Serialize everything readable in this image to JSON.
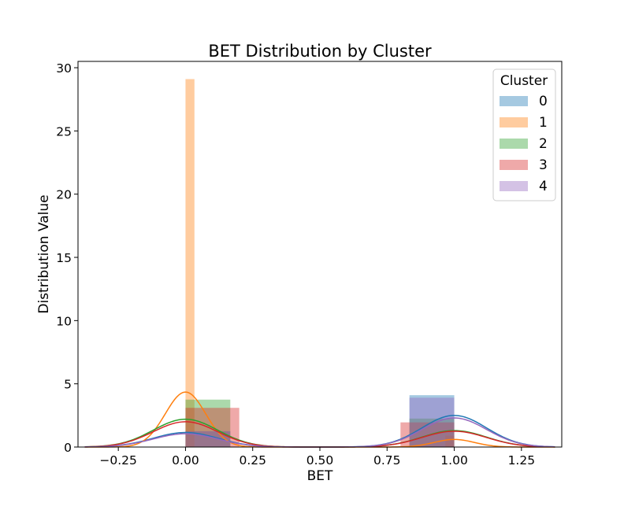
{
  "chart_data": {
    "type": "histogram-kde",
    "title": "BET Distribution by Cluster",
    "xlabel": "BET",
    "ylabel": "Distribution Value",
    "xlim": [
      -0.4,
      1.4
    ],
    "ylim": [
      0,
      30.5
    ],
    "xticks": [
      -0.25,
      0.0,
      0.25,
      0.5,
      0.75,
      1.0,
      1.25
    ],
    "xtick_labels": [
      "−0.25",
      "0.00",
      "0.25",
      "0.50",
      "0.75",
      "1.00",
      "1.25"
    ],
    "yticks": [
      0,
      5,
      10,
      15,
      20,
      25,
      30
    ],
    "ytick_labels": [
      "0",
      "5",
      "10",
      "15",
      "20",
      "25",
      "30"
    ],
    "grid": false,
    "legend": {
      "title": "Cluster",
      "position": "top-right"
    },
    "series": [
      {
        "name": "0",
        "color": "#1f77b4",
        "bins": [
          {
            "x0": 0.0,
            "x1": 0.1667,
            "density": 1.25
          },
          {
            "x0": 0.8333,
            "x1": 1.0,
            "density": 4.1
          }
        ],
        "kde": {
          "peaks": [
            {
              "mu": 0.0,
              "sigma": 0.12,
              "height": 1.15
            },
            {
              "mu": 1.0,
              "sigma": 0.12,
              "height": 2.5
            }
          ]
        }
      },
      {
        "name": "1",
        "color": "#ff7f0e",
        "bins": [
          {
            "x0": 0.0,
            "x1": 0.0333,
            "density": 29.1
          },
          {
            "x0": 0.9667,
            "x1": 1.0,
            "density": 0.9
          }
        ],
        "kde": {
          "peaks": [
            {
              "mu": 0.0,
              "sigma": 0.075,
              "height": 4.35
            },
            {
              "mu": 1.0,
              "sigma": 0.075,
              "height": 0.6
            }
          ]
        }
      },
      {
        "name": "2",
        "color": "#2ca02c",
        "bins": [
          {
            "x0": 0.0,
            "x1": 0.1667,
            "density": 3.75
          },
          {
            "x0": 0.8333,
            "x1": 1.0,
            "density": 2.25
          }
        ],
        "kde": {
          "peaks": [
            {
              "mu": 0.0,
              "sigma": 0.12,
              "height": 2.2
            },
            {
              "mu": 1.0,
              "sigma": 0.12,
              "height": 1.3
            }
          ]
        }
      },
      {
        "name": "3",
        "color": "#d62728",
        "bins": [
          {
            "x0": 0.0,
            "x1": 0.2,
            "density": 3.1
          },
          {
            "x0": 0.8,
            "x1": 1.0,
            "density": 1.95
          }
        ],
        "kde": {
          "peaks": [
            {
              "mu": 0.0,
              "sigma": 0.12,
              "height": 2.0
            },
            {
              "mu": 1.0,
              "sigma": 0.12,
              "height": 1.25
            }
          ]
        }
      },
      {
        "name": "4",
        "color": "#9467bd",
        "bins": [
          {
            "x0": 0.0,
            "x1": 0.1667,
            "density": 1.25
          },
          {
            "x0": 0.8333,
            "x1": 1.0,
            "density": 3.9
          }
        ],
        "kde": {
          "peaks": [
            {
              "mu": 0.0,
              "sigma": 0.12,
              "height": 1.05
            },
            {
              "mu": 1.0,
              "sigma": 0.12,
              "height": 2.3
            }
          ]
        }
      }
    ]
  }
}
